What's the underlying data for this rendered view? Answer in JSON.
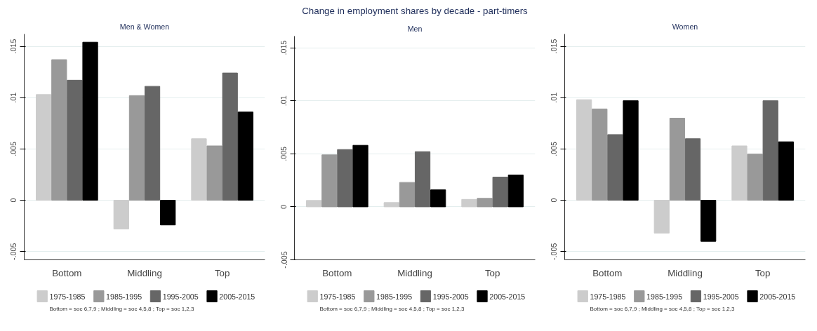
{
  "chart_data": [
    {
      "type": "bar",
      "subtitle": "Men & Women",
      "categories": [
        "Bottom",
        "Middling",
        "Top"
      ],
      "series": [
        {
          "name": "1975-1985",
          "color": "#cccccc",
          "values": [
            0.0103,
            -0.0028,
            0.006
          ]
        },
        {
          "name": "1985-1995",
          "color": "#999999",
          "values": [
            0.0137,
            0.0102,
            0.0053
          ]
        },
        {
          "name": "1995-2005",
          "color": "#666666",
          "values": [
            0.0117,
            0.0111,
            0.0124
          ]
        },
        {
          "name": "2005-2015",
          "color": "#000000",
          "values": [
            0.0154,
            -0.0024,
            0.0086
          ]
        }
      ],
      "ylim": [
        -0.0058,
        0.0162
      ],
      "yticks": [
        {
          "value": -0.005,
          "label": "-.005"
        },
        0,
        {
          "value": 0.005,
          "label": ".005"
        },
        {
          "value": 0.01,
          "label": ".01"
        },
        {
          "value": 0.015,
          "label": ".015"
        }
      ],
      "grid": "y",
      "legend": "bottom",
      "annotations": [
        "Bottom = soc 6,7,9 ; Middling = soc 4,5,8 ; Top = soc 1,2,3"
      ]
    },
    {
      "type": "bar",
      "title": "Change in employment shares by decade - part-timers",
      "subtitle": "Men",
      "categories": [
        "Bottom",
        "Middling",
        "Top"
      ],
      "series": [
        {
          "name": "1975-1985",
          "color": "#cccccc",
          "values": [
            0.0006,
            0.0004,
            0.0007
          ]
        },
        {
          "name": "1985-1995",
          "color": "#999999",
          "values": [
            0.0049,
            0.0023,
            0.0008
          ]
        },
        {
          "name": "1995-2005",
          "color": "#666666",
          "values": [
            0.0054,
            0.0052,
            0.0028
          ]
        },
        {
          "name": "2005-2015",
          "color": "#000000",
          "values": [
            0.0058,
            0.0016,
            0.003
          ]
        }
      ],
      "ylim": [
        -0.005,
        0.0161
      ],
      "yticks": [
        {
          "value": -0.005,
          "label": "-.005"
        },
        0,
        {
          "value": 0.005,
          "label": ".005"
        },
        {
          "value": 0.01,
          "label": ".01"
        },
        {
          "value": 0.015,
          "label": ".015"
        }
      ],
      "grid": "y",
      "legend": "bottom",
      "annotations": [
        "Bottom = soc 6,7,9 ; Middling = soc 4,5,8 ; Top = soc 1,2,3"
      ]
    },
    {
      "type": "bar",
      "subtitle": "Women",
      "categories": [
        "Bottom",
        "Middling",
        "Top"
      ],
      "series": [
        {
          "name": "1975-1985",
          "color": "#cccccc",
          "values": [
            0.0098,
            -0.0032,
            0.0053
          ]
        },
        {
          "name": "1985-1995",
          "color": "#999999",
          "values": [
            0.0089,
            0.008,
            0.0045
          ]
        },
        {
          "name": "1995-2005",
          "color": "#666666",
          "values": [
            0.0064,
            0.006,
            0.0097
          ]
        },
        {
          "name": "2005-2015",
          "color": "#000000",
          "values": [
            0.0097,
            -0.004,
            0.0057
          ]
        }
      ],
      "ylim": [
        -0.0058,
        0.0162
      ],
      "yticks": [
        {
          "value": -0.005,
          "label": "-.005"
        },
        0,
        {
          "value": 0.005,
          "label": ".005"
        },
        {
          "value": 0.01,
          "label": ".01"
        },
        {
          "value": 0.015,
          "label": ".015"
        }
      ],
      "grid": "y",
      "legend": "bottom",
      "annotations": [
        "Bottom = soc 6,7,9 ; Middling = soc 4,5,8 ; Top = soc 1,2,3"
      ]
    }
  ]
}
